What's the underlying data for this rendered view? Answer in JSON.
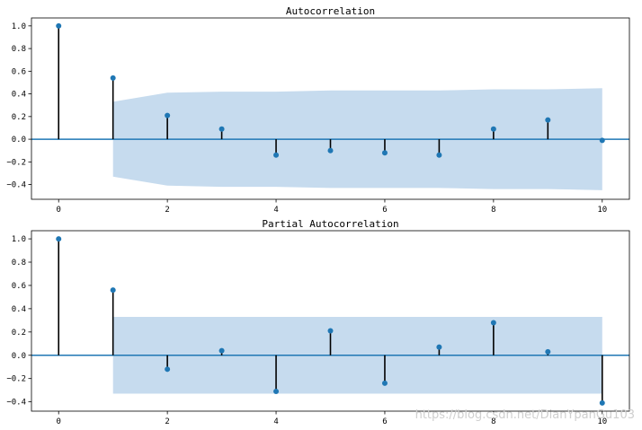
{
  "chart_data": [
    {
      "type": "stem",
      "title": "Autocorrelation",
      "xlabel": "",
      "ylabel": "",
      "x": [
        0,
        1,
        2,
        3,
        4,
        5,
        6,
        7,
        8,
        9,
        10
      ],
      "values": [
        1.0,
        0.54,
        0.21,
        0.09,
        -0.14,
        -0.1,
        -0.12,
        -0.14,
        0.09,
        0.17,
        -0.01
      ],
      "confidence_band": {
        "x": [
          1,
          2,
          3,
          4,
          5,
          6,
          7,
          8,
          9,
          10
        ],
        "upper": [
          0.33,
          0.41,
          0.42,
          0.42,
          0.43,
          0.43,
          0.43,
          0.44,
          0.44,
          0.45
        ],
        "lower": [
          -0.33,
          -0.41,
          -0.42,
          -0.42,
          -0.43,
          -0.43,
          -0.43,
          -0.44,
          -0.44,
          -0.45
        ]
      },
      "xlim": [
        -0.5,
        10.5
      ],
      "ylim": [
        -0.53,
        1.07
      ],
      "xticks": [
        0,
        2,
        4,
        6,
        8,
        10
      ],
      "yticks": [
        -0.4,
        -0.2,
        0.0,
        0.2,
        0.4,
        0.6,
        0.8,
        1.0
      ],
      "grid": false
    },
    {
      "type": "stem",
      "title": "Partial Autocorrelation",
      "xlabel": "",
      "ylabel": "",
      "x": [
        0,
        1,
        2,
        3,
        4,
        5,
        6,
        7,
        8,
        9,
        10
      ],
      "values": [
        1.0,
        0.56,
        -0.12,
        0.04,
        -0.31,
        0.21,
        -0.24,
        0.07,
        0.28,
        0.03,
        -0.41
      ],
      "confidence_band": {
        "x": [
          1,
          10
        ],
        "upper": [
          0.33,
          0.33
        ],
        "lower": [
          -0.33,
          -0.33
        ]
      },
      "xlim": [
        -0.5,
        10.5
      ],
      "ylim": [
        -0.48,
        1.07
      ],
      "xticks": [
        0,
        2,
        4,
        6,
        8,
        10
      ],
      "yticks": [
        -0.4,
        -0.2,
        0.0,
        0.2,
        0.4,
        0.6,
        0.8,
        1.0
      ],
      "grid": false
    }
  ],
  "colors": {
    "marker": "#1f77b4",
    "zero_line": "#1f77b4",
    "stem": "#000000",
    "band": "#c6dbee"
  },
  "watermark": "https://blog.csdn.net/DianYpanGu103"
}
